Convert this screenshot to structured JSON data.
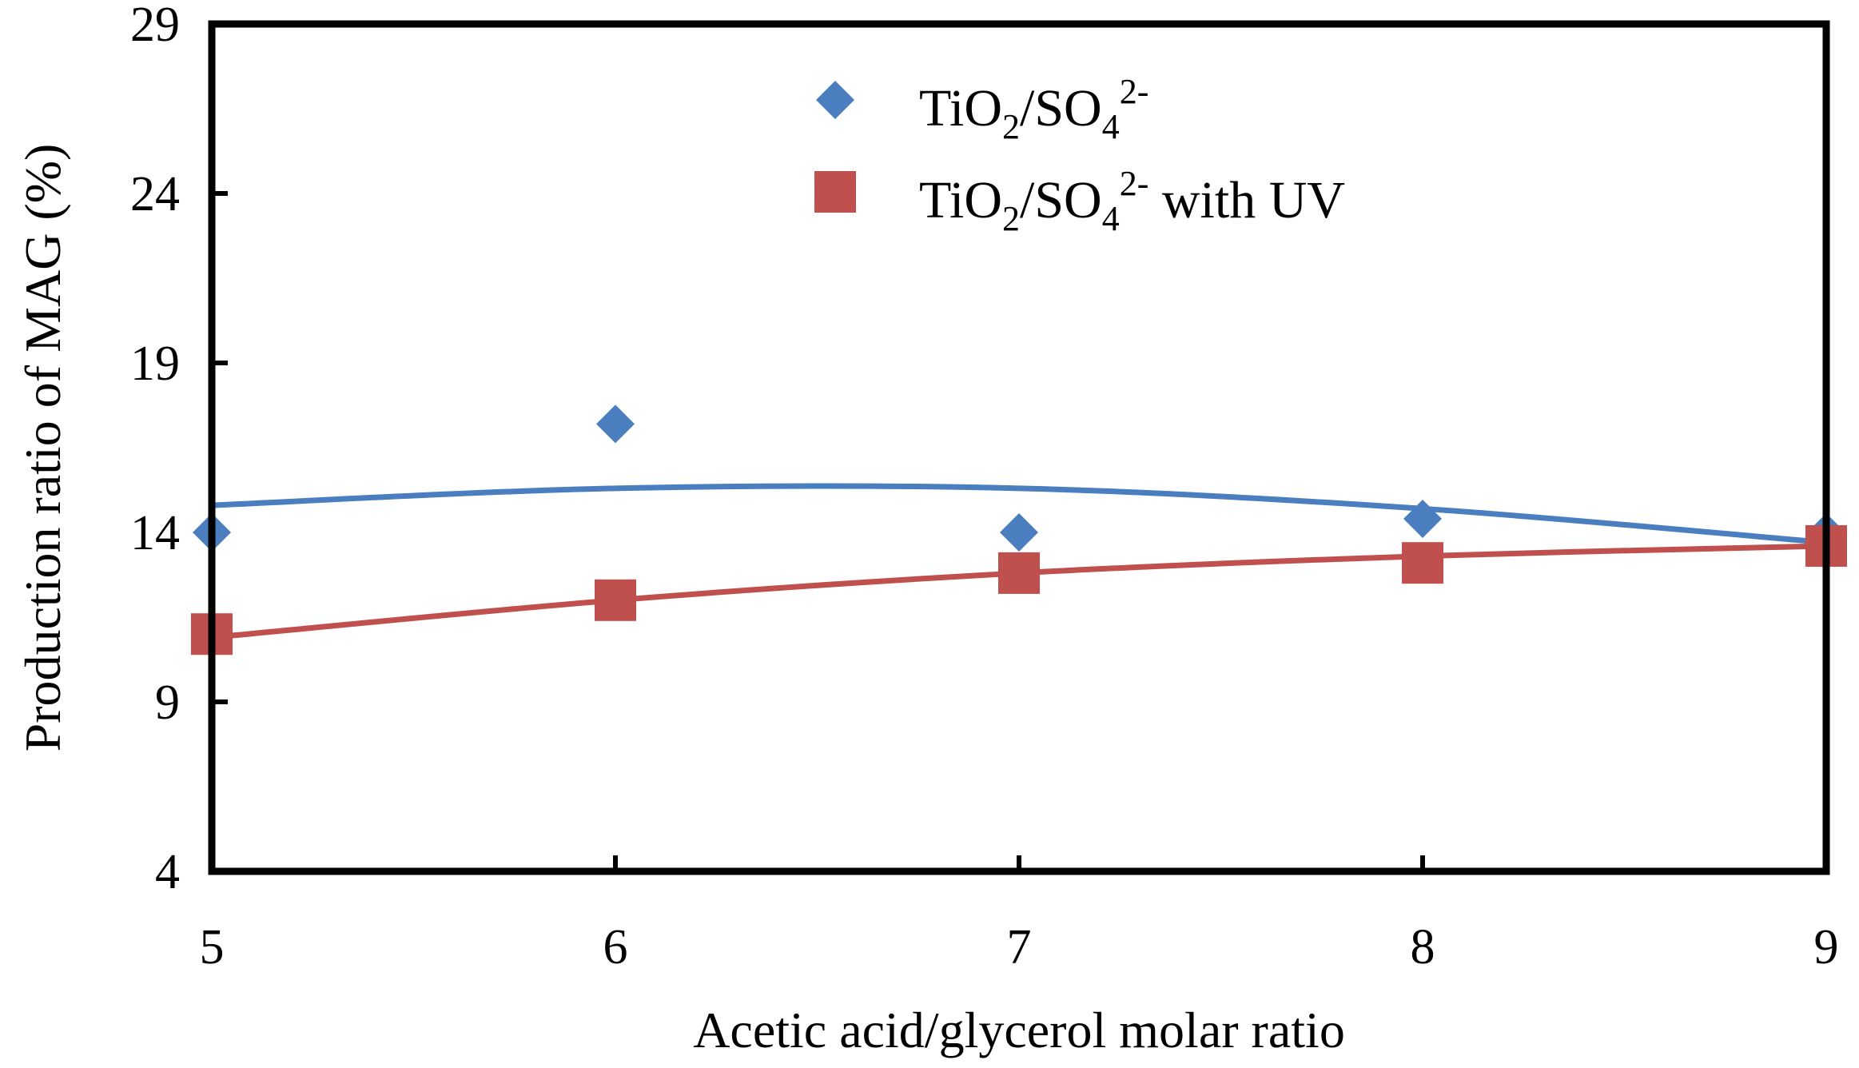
{
  "chart_data": {
    "type": "scatter",
    "title": "",
    "xlabel": "Acetic acid/glycerol molar ratio",
    "ylabel": "Production ratio of  MAG (%)",
    "xlim": [
      5,
      9
    ],
    "ylim": [
      4,
      29
    ],
    "xticks": [
      "5",
      "6",
      "7",
      "8",
      "9"
    ],
    "yticks": [
      "4",
      "9",
      "14",
      "19",
      "24",
      "29"
    ],
    "grid": false,
    "legend_position": "top-center",
    "series": [
      {
        "name": "TiO2/SO42-",
        "legend": {
          "base": "TiO",
          "sub1": "2",
          "mid": "/SO",
          "sub2": "4",
          "sup": "2-",
          "tail": ""
        },
        "marker": "diamond",
        "color": "#4a7ebf",
        "x": [
          5,
          6,
          7,
          8,
          9
        ],
        "y": [
          14.0,
          17.2,
          14.0,
          14.4,
          14.0
        ],
        "trend_y": [
          14.8,
          15.3,
          15.3,
          14.7,
          13.7
        ]
      },
      {
        "name": "TiO2/SO42- with UV",
        "legend": {
          "base": "TiO",
          "sub1": "2",
          "mid": "/SO",
          "sub2": "4",
          "sup": "2-",
          "tail": " with UV"
        },
        "marker": "square",
        "color": "#c0504d",
        "x": [
          5,
          6,
          7,
          8,
          9
        ],
        "y": [
          11.0,
          12.0,
          12.8,
          13.1,
          13.6
        ],
        "trend_y": [
          10.9,
          12.0,
          12.8,
          13.3,
          13.6
        ]
      }
    ]
  }
}
